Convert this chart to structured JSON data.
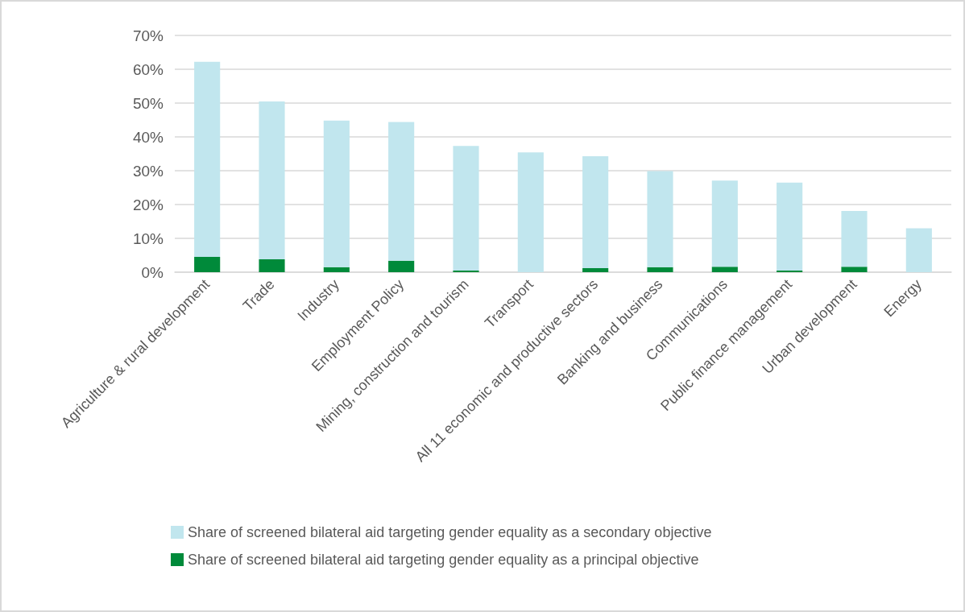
{
  "chart_data": {
    "type": "bar",
    "stacked": true,
    "categories": [
      "Agriculture & rural development",
      "Trade",
      "Industry",
      "Employment Policy",
      "Mining, construction and tourism",
      "Transport",
      "All 11 economic and productive sectors",
      "Banking and business",
      "Communications",
      "Public finance management",
      "Urban development",
      "Energy"
    ],
    "series": [
      {
        "name": "Share of screened bilateral aid targeting gender equality as a principal objective",
        "color": "#008a3a",
        "values": [
          4.5,
          3.8,
          1.5,
          3.4,
          0.5,
          0,
          1.2,
          1.5,
          1.6,
          0.5,
          1.6,
          0
        ]
      },
      {
        "name": "Share of screened bilateral aid targeting gender equality as a secondary objective",
        "color": "#c1e6ee",
        "values": [
          57.7,
          46.7,
          43.3,
          41.0,
          36.8,
          35.4,
          33.1,
          28.4,
          25.5,
          26.0,
          16.5,
          13.0
        ]
      }
    ],
    "ylim": [
      0,
      70
    ],
    "yticks": [
      {
        "value": 0,
        "label": "0%"
      },
      {
        "value": 10,
        "label": "10%"
      },
      {
        "value": 20,
        "label": "20%"
      },
      {
        "value": 30,
        "label": "30%"
      },
      {
        "value": 40,
        "label": "40%"
      },
      {
        "value": 50,
        "label": "50%"
      },
      {
        "value": 60,
        "label": "60%"
      },
      {
        "value": 70,
        "label": "70%"
      }
    ],
    "grid": "y",
    "legend": "bottom"
  }
}
